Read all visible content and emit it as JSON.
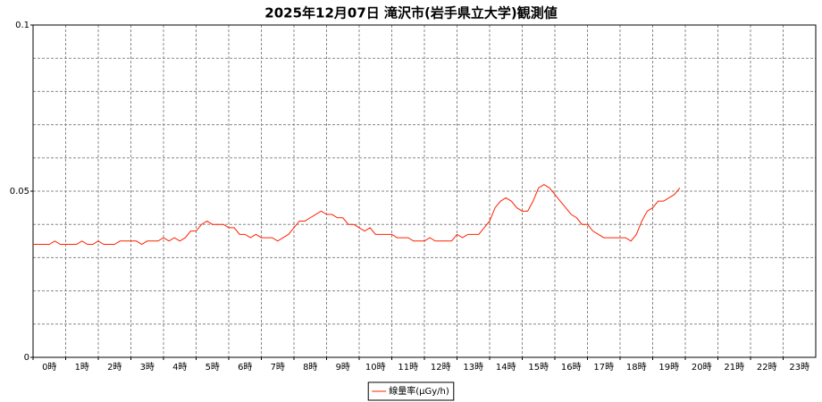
{
  "chart_data": {
    "type": "line",
    "title": "2025年12月07日 滝沢市(岩手県立大学)観測値",
    "x": [
      0,
      10,
      20,
      30,
      40,
      50,
      60,
      70,
      80,
      90,
      100,
      110,
      120,
      130,
      140,
      150,
      160,
      170,
      180,
      190,
      200,
      210,
      220,
      230,
      240,
      250,
      260,
      270,
      280,
      290,
      300,
      310,
      320,
      330,
      340,
      350,
      360,
      370,
      380,
      390,
      400,
      410,
      420,
      430,
      440,
      450,
      460,
      470,
      480,
      490,
      500,
      510,
      520,
      530,
      540,
      550,
      560,
      570,
      580,
      590,
      600,
      610,
      620,
      630,
      640,
      650,
      660,
      670,
      680,
      690,
      700,
      710,
      720,
      730,
      740,
      750,
      760,
      770,
      780,
      790,
      800,
      810,
      820,
      830,
      840,
      850,
      860,
      870,
      880,
      890,
      900,
      910,
      920,
      930,
      940,
      950,
      960,
      970,
      980,
      990,
      1000,
      1010,
      1020,
      1030,
      1040,
      1050,
      1060,
      1070,
      1080,
      1090,
      1100,
      1110,
      1120,
      1130,
      1140,
      1150,
      1160,
      1170,
      1180,
      1190
    ],
    "series": [
      {
        "name": "線量率(μGy/h)",
        "color": "#ff2000",
        "values": [
          0.034,
          0.034,
          0.034,
          0.034,
          0.035,
          0.034,
          0.034,
          0.034,
          0.034,
          0.035,
          0.034,
          0.034,
          0.035,
          0.034,
          0.034,
          0.034,
          0.035,
          0.035,
          0.035,
          0.035,
          0.034,
          0.035,
          0.035,
          0.035,
          0.036,
          0.035,
          0.036,
          0.035,
          0.036,
          0.038,
          0.038,
          0.04,
          0.041,
          0.04,
          0.04,
          0.04,
          0.039,
          0.039,
          0.037,
          0.037,
          0.036,
          0.037,
          0.036,
          0.036,
          0.036,
          0.035,
          0.036,
          0.037,
          0.039,
          0.041,
          0.041,
          0.042,
          0.043,
          0.044,
          0.043,
          0.043,
          0.042,
          0.042,
          0.04,
          0.04,
          0.039,
          0.038,
          0.039,
          0.037,
          0.037,
          0.037,
          0.037,
          0.036,
          0.036,
          0.036,
          0.035,
          0.035,
          0.035,
          0.036,
          0.035,
          0.035,
          0.035,
          0.035,
          0.037,
          0.036,
          0.037,
          0.037,
          0.037,
          0.039,
          0.041,
          0.045,
          0.047,
          0.048,
          0.047,
          0.045,
          0.044,
          0.044,
          0.047,
          0.051,
          0.052,
          0.051,
          0.049,
          0.047,
          0.045,
          0.043,
          0.042,
          0.04,
          0.04,
          0.038,
          0.037,
          0.036,
          0.036,
          0.036,
          0.036,
          0.036,
          0.035,
          0.037,
          0.041,
          0.044,
          0.045,
          0.047,
          0.047,
          0.048,
          0.049,
          0.051
        ]
      }
    ],
    "xlim": [
      0,
      1440
    ],
    "xticks": [
      {
        "value": 0,
        "label": "0時"
      },
      {
        "value": 60,
        "label": "1時"
      },
      {
        "value": 120,
        "label": "2時"
      },
      {
        "value": 180,
        "label": "3時"
      },
      {
        "value": 240,
        "label": "4時"
      },
      {
        "value": 300,
        "label": "5時"
      },
      {
        "value": 360,
        "label": "6時"
      },
      {
        "value": 420,
        "label": "7時"
      },
      {
        "value": 480,
        "label": "8時"
      },
      {
        "value": 540,
        "label": "9時"
      },
      {
        "value": 600,
        "label": "10時"
      },
      {
        "value": 660,
        "label": "11時"
      },
      {
        "value": 720,
        "label": "12時"
      },
      {
        "value": 780,
        "label": "13時"
      },
      {
        "value": 840,
        "label": "14時"
      },
      {
        "value": 900,
        "label": "15時"
      },
      {
        "value": 960,
        "label": "16時"
      },
      {
        "value": 1020,
        "label": "17時"
      },
      {
        "value": 1080,
        "label": "18時"
      },
      {
        "value": 1140,
        "label": "19時"
      },
      {
        "value": 1200,
        "label": "20時"
      },
      {
        "value": 1260,
        "label": "21時"
      },
      {
        "value": 1320,
        "label": "22時"
      },
      {
        "value": 1380,
        "label": "23時"
      }
    ],
    "ylim": [
      0,
      0.1
    ],
    "yticks": [
      0,
      0.05,
      0.1
    ],
    "ygrid": [
      0.01,
      0.02,
      0.03,
      0.04,
      0.05,
      0.06,
      0.07,
      0.08,
      0.09
    ],
    "grid": true,
    "legend": "bottom"
  }
}
